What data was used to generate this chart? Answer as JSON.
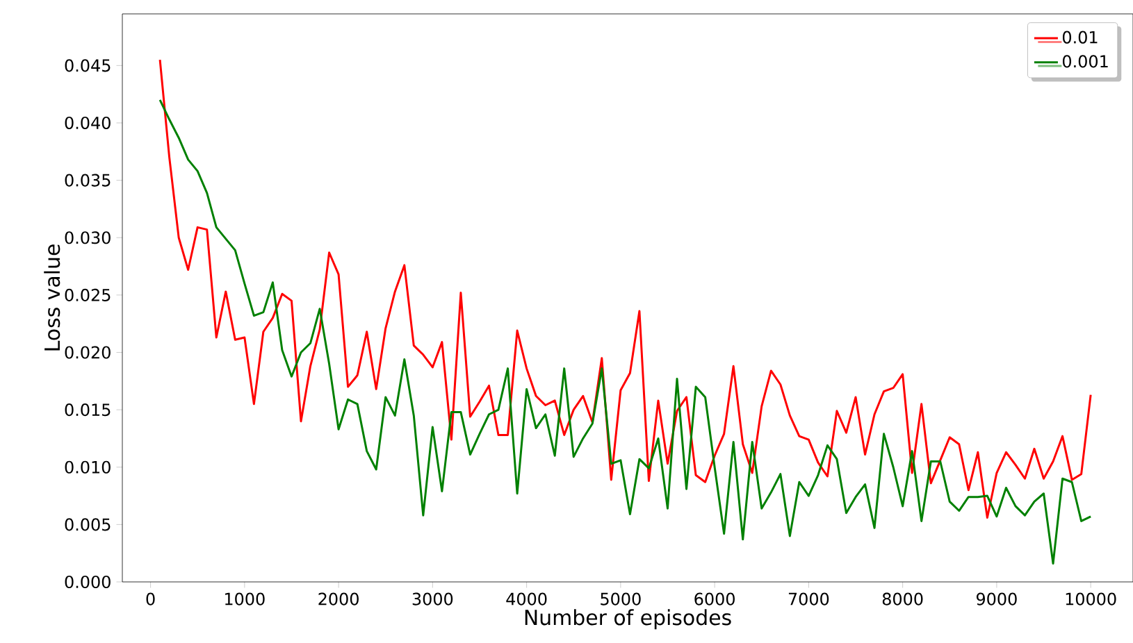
{
  "chart_data": {
    "type": "line",
    "xlabel": "Number of episodes",
    "ylabel": "Loss value",
    "legend": "top right",
    "grid": false,
    "xlim": [
      -300,
      10450
    ],
    "ylim": [
      0,
      0.0495
    ],
    "xticks": [
      0,
      1000,
      2000,
      3000,
      4000,
      5000,
      6000,
      7000,
      8000,
      9000,
      10000
    ],
    "yticks": [
      {
        "value": 0,
        "label": "0.000"
      },
      {
        "value": 0.005,
        "label": "0.005"
      },
      {
        "value": 0.01,
        "label": "0.010"
      },
      {
        "value": 0.015,
        "label": "0.015"
      },
      {
        "value": 0.02,
        "label": "0.020"
      },
      {
        "value": 0.025,
        "label": "0.025"
      },
      {
        "value": 0.03,
        "label": "0.030"
      },
      {
        "value": 0.035,
        "label": "0.035"
      },
      {
        "value": 0.04,
        "label": "0.040"
      },
      {
        "value": 0.045,
        "label": "0.045"
      }
    ],
    "x": [
      100,
      200,
      300,
      400,
      500,
      600,
      700,
      800,
      900,
      1000,
      1100,
      1200,
      1300,
      1400,
      1500,
      1600,
      1700,
      1800,
      1900,
      2000,
      2100,
      2200,
      2300,
      2400,
      2500,
      2600,
      2700,
      2800,
      2900,
      3000,
      3100,
      3200,
      3300,
      3400,
      3500,
      3600,
      3700,
      3800,
      3900,
      4000,
      4100,
      4200,
      4300,
      4400,
      4500,
      4600,
      4700,
      4800,
      4900,
      5000,
      5100,
      5200,
      5300,
      5400,
      5500,
      5600,
      5700,
      5800,
      5900,
      6000,
      6100,
      6200,
      6300,
      6400,
      6500,
      6600,
      6700,
      6800,
      6900,
      7000,
      7100,
      7200,
      7300,
      7400,
      7500,
      7600,
      7700,
      7800,
      7900,
      8000,
      8100,
      8200,
      8300,
      8400,
      8500,
      8600,
      8700,
      8800,
      8900,
      9000,
      9100,
      9200,
      9300,
      9400,
      9500,
      9600,
      9700,
      9800,
      9900,
      10000
    ],
    "series": [
      {
        "name": "0.01",
        "color": "#ff0000",
        "values": [
          0.0455,
          0.037,
          0.03,
          0.0272,
          0.0309,
          0.0307,
          0.0213,
          0.0253,
          0.0211,
          0.0213,
          0.0155,
          0.0218,
          0.023,
          0.0251,
          0.0245,
          0.014,
          0.0188,
          0.022,
          0.0287,
          0.0268,
          0.017,
          0.018,
          0.0218,
          0.0168,
          0.0221,
          0.0253,
          0.0276,
          0.0206,
          0.0198,
          0.0187,
          0.0209,
          0.0124,
          0.0252,
          0.0144,
          0.0157,
          0.0171,
          0.0128,
          0.0128,
          0.0219,
          0.0186,
          0.0162,
          0.0154,
          0.0158,
          0.0128,
          0.015,
          0.0162,
          0.0139,
          0.0195,
          0.0089,
          0.0167,
          0.0182,
          0.0236,
          0.0088,
          0.0158,
          0.0103,
          0.0149,
          0.0161,
          0.0093,
          0.0087,
          0.011,
          0.0129,
          0.0188,
          0.012,
          0.0095,
          0.0153,
          0.0184,
          0.0172,
          0.0145,
          0.0127,
          0.0124,
          0.0104,
          0.0092,
          0.0149,
          0.013,
          0.0161,
          0.0111,
          0.0146,
          0.0166,
          0.0169,
          0.0181,
          0.0095,
          0.0155,
          0.0086,
          0.0106,
          0.0126,
          0.012,
          0.008,
          0.0113,
          0.0056,
          0.0095,
          0.0113,
          0.0102,
          0.009,
          0.0116,
          0.009,
          0.0105,
          0.0127,
          0.0089,
          0.0094,
          0.0163
        ]
      },
      {
        "name": "0.001",
        "color": "#008000",
        "values": [
          0.042,
          0.0403,
          0.0387,
          0.0368,
          0.0358,
          0.0339,
          0.0309,
          0.0299,
          0.0289,
          0.026,
          0.0232,
          0.0235,
          0.0261,
          0.0202,
          0.0179,
          0.02,
          0.0208,
          0.0238,
          0.019,
          0.0133,
          0.0159,
          0.0155,
          0.0114,
          0.0098,
          0.0161,
          0.0145,
          0.0194,
          0.0145,
          0.0058,
          0.0135,
          0.0079,
          0.0148,
          0.0148,
          0.0111,
          0.0129,
          0.0146,
          0.015,
          0.0186,
          0.0077,
          0.0168,
          0.0134,
          0.0146,
          0.011,
          0.0186,
          0.0109,
          0.0125,
          0.0138,
          0.0186,
          0.0103,
          0.0106,
          0.0059,
          0.0107,
          0.0099,
          0.0125,
          0.0064,
          0.0177,
          0.0081,
          0.017,
          0.0161,
          0.01,
          0.0042,
          0.0122,
          0.0037,
          0.0122,
          0.0064,
          0.0078,
          0.0094,
          0.004,
          0.0087,
          0.0075,
          0.0093,
          0.0119,
          0.0107,
          0.006,
          0.0074,
          0.0085,
          0.0047,
          0.0129,
          0.01,
          0.0066,
          0.0114,
          0.0053,
          0.0105,
          0.0105,
          0.007,
          0.0062,
          0.0074,
          0.0074,
          0.0075,
          0.0057,
          0.0082,
          0.0066,
          0.0058,
          0.007,
          0.0077,
          0.0016,
          0.009,
          0.0087,
          0.0053,
          0.0057
        ]
      }
    ]
  }
}
